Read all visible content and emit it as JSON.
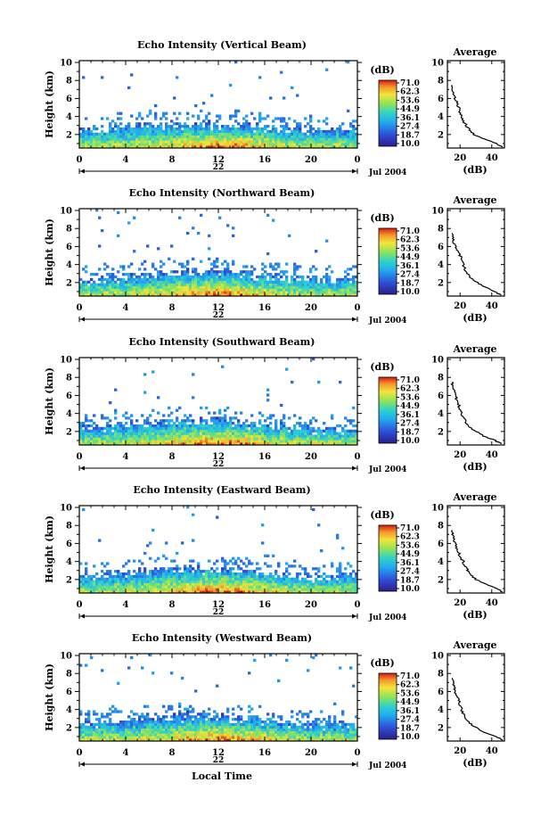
{
  "chart_data": [
    {
      "type": "heatmap",
      "title": "Echo Intensity (Vertical Beam)",
      "ylabel": "Height (km)",
      "xlabel": "",
      "date_label": "22",
      "month_label": "Jul 2004",
      "x_ticks": [
        "0",
        "4",
        "8",
        "12",
        "16",
        "20",
        "0"
      ],
      "y_ticks": [
        "2",
        "4",
        "6",
        "8",
        "10"
      ],
      "xlim": [
        0,
        24
      ],
      "ylim": [
        0.5,
        10.2
      ],
      "colorbar": {
        "unit": "(dB)",
        "ticks": [
          "71.0",
          "62.3",
          "53.6",
          "44.9",
          "36.1",
          "27.4",
          "18.7",
          "10.0"
        ],
        "range": [
          10.0,
          71.0
        ]
      },
      "profile": {
        "title": "Average",
        "xlabel": "(dB)",
        "x_ticks": [
          "20",
          "40"
        ],
        "y_ticks": [
          "2",
          "4",
          "6",
          "8",
          "10"
        ],
        "xlim": [
          12,
          48
        ],
        "heights": [
          0.6,
          1.0,
          1.5,
          2.0,
          2.5,
          3.0,
          3.5,
          4.0,
          4.5,
          5.0,
          5.5,
          6.0,
          6.5,
          7.0,
          7.5
        ],
        "values": [
          47,
          43,
          35,
          29,
          26,
          24,
          22,
          21,
          20,
          19,
          18,
          17,
          16,
          15.5,
          15
        ]
      }
    },
    {
      "type": "heatmap",
      "title": "Echo Intensity (Northward Beam)",
      "ylabel": "Height (km)",
      "xlabel": "",
      "date_label": "22",
      "month_label": "Jul 2004",
      "x_ticks": [
        "0",
        "4",
        "8",
        "12",
        "16",
        "20",
        "0"
      ],
      "y_ticks": [
        "2",
        "4",
        "6",
        "8",
        "10"
      ],
      "xlim": [
        0,
        24
      ],
      "ylim": [
        0.5,
        10.2
      ],
      "colorbar": {
        "unit": "(dB)",
        "ticks": [
          "71.0",
          "62.3",
          "53.6",
          "44.9",
          "36.1",
          "27.4",
          "18.7",
          "10.0"
        ],
        "range": [
          10.0,
          71.0
        ]
      },
      "profile": {
        "title": "Average",
        "xlabel": "(dB)",
        "x_ticks": [
          "20",
          "40"
        ],
        "y_ticks": [
          "2",
          "4",
          "6",
          "8",
          "10"
        ],
        "xlim": [
          12,
          48
        ],
        "heights": [
          0.6,
          1.0,
          1.5,
          2.0,
          2.5,
          3.0,
          3.5,
          4.0,
          4.5,
          5.0,
          5.5,
          6.0,
          6.5,
          7.0,
          7.5
        ],
        "values": [
          46,
          42,
          36,
          31,
          27,
          25,
          23,
          22,
          21,
          20,
          18,
          17,
          16,
          15.5,
          15
        ]
      }
    },
    {
      "type": "heatmap",
      "title": "Echo Intensity (Southward Beam)",
      "ylabel": "Height (km)",
      "xlabel": "",
      "date_label": "22",
      "month_label": "Jul 2004",
      "x_ticks": [
        "0",
        "4",
        "8",
        "12",
        "16",
        "20",
        "0"
      ],
      "y_ticks": [
        "2",
        "4",
        "6",
        "8",
        "10"
      ],
      "xlim": [
        0,
        24
      ],
      "ylim": [
        0.5,
        10.2
      ],
      "colorbar": {
        "unit": "(dB)",
        "ticks": [
          "71.0",
          "62.3",
          "53.6",
          "44.9",
          "36.1",
          "27.4",
          "18.7",
          "10.0"
        ],
        "range": [
          10.0,
          71.0
        ]
      },
      "profile": {
        "title": "Average",
        "xlabel": "(dB)",
        "x_ticks": [
          "20",
          "40"
        ],
        "y_ticks": [
          "2",
          "4",
          "6",
          "8",
          "10"
        ],
        "xlim": [
          12,
          48
        ],
        "heights": [
          0.6,
          1.0,
          1.5,
          2.0,
          2.5,
          3.0,
          3.5,
          4.0,
          4.5,
          5.0,
          5.5,
          6.0,
          6.5,
          7.0,
          7.5
        ],
        "values": [
          46,
          42,
          35,
          30,
          26,
          24,
          22,
          21,
          20,
          19,
          18,
          17,
          16,
          15.5,
          15
        ]
      }
    },
    {
      "type": "heatmap",
      "title": "Echo Intensity (Eastward Beam)",
      "ylabel": "Height (km)",
      "xlabel": "",
      "date_label": "22",
      "month_label": "Jul 2004",
      "x_ticks": [
        "0",
        "4",
        "8",
        "12",
        "16",
        "20",
        "0"
      ],
      "y_ticks": [
        "2",
        "4",
        "6",
        "8",
        "10"
      ],
      "xlim": [
        0,
        24
      ],
      "ylim": [
        0.5,
        10.2
      ],
      "colorbar": {
        "unit": "(dB)",
        "ticks": [
          "71.0",
          "62.3",
          "53.6",
          "44.9",
          "36.1",
          "27.4",
          "18.7",
          "10.0"
        ],
        "range": [
          10.0,
          71.0
        ]
      },
      "profile": {
        "title": "Average",
        "xlabel": "(dB)",
        "x_ticks": [
          "20",
          "40"
        ],
        "y_ticks": [
          "2",
          "4",
          "6",
          "8",
          "10"
        ],
        "xlim": [
          12,
          48
        ],
        "heights": [
          0.6,
          1.0,
          1.5,
          2.0,
          2.5,
          3.0,
          3.5,
          4.0,
          4.5,
          5.0,
          5.5,
          6.0,
          6.5,
          7.0,
          7.5
        ],
        "values": [
          47,
          43,
          36,
          30,
          27,
          25,
          23,
          22,
          20,
          19,
          18,
          17,
          16,
          15.5,
          15
        ]
      }
    },
    {
      "type": "heatmap",
      "title": "Echo Intensity (Westward Beam)",
      "ylabel": "Height (km)",
      "xlabel": "Local Time",
      "date_label": "22",
      "month_label": "Jul 2004",
      "x_ticks": [
        "0",
        "4",
        "8",
        "12",
        "16",
        "20",
        "0"
      ],
      "y_ticks": [
        "2",
        "4",
        "6",
        "8",
        "10"
      ],
      "xlim": [
        0,
        24
      ],
      "ylim": [
        0.5,
        10.2
      ],
      "colorbar": {
        "unit": "(dB)",
        "ticks": [
          "71.0",
          "62.3",
          "53.6",
          "44.9",
          "36.1",
          "27.4",
          "18.7",
          "10.0"
        ],
        "range": [
          10.0,
          71.0
        ]
      },
      "profile": {
        "title": "Average",
        "xlabel": "(dB)",
        "x_ticks": [
          "20",
          "40"
        ],
        "y_ticks": [
          "2",
          "4",
          "6",
          "8",
          "10"
        ],
        "xlim": [
          12,
          48
        ],
        "heights": [
          0.6,
          1.0,
          1.5,
          2.0,
          2.5,
          3.0,
          3.5,
          4.0,
          4.5,
          5.0,
          5.5,
          6.0,
          6.5,
          7.0,
          7.5
        ],
        "values": [
          47,
          43,
          35,
          30,
          26,
          24,
          22,
          21,
          20,
          19,
          18,
          17,
          16,
          15.5,
          15
        ]
      }
    }
  ]
}
